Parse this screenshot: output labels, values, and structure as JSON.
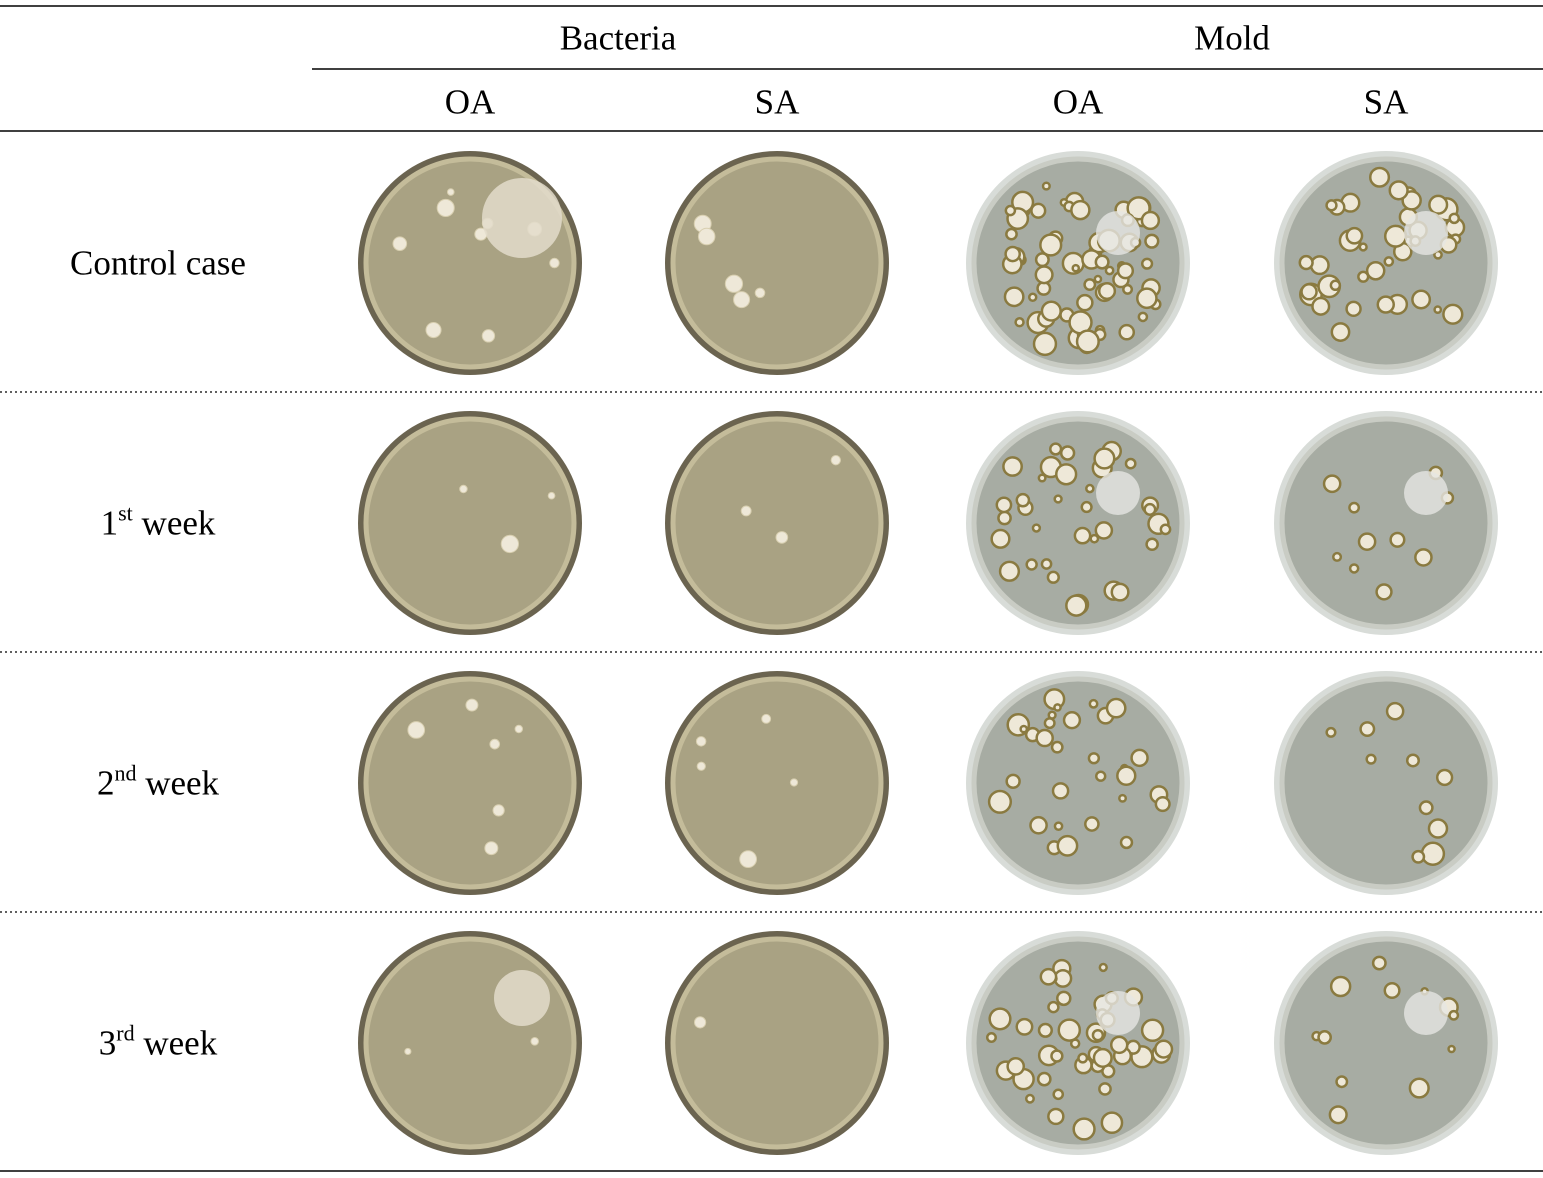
{
  "table": {
    "group_headers": [
      "Bacteria",
      "Mold"
    ],
    "column_headers": [
      "OA",
      "SA",
      "OA",
      "SA"
    ],
    "rows": [
      {
        "label": "Control case"
      },
      {
        "number": "1",
        "suffix": "st",
        "text": "week"
      },
      {
        "number": "2",
        "suffix": "nd",
        "text": "week"
      },
      {
        "number": "3",
        "suffix": "rd",
        "text": "week"
      }
    ]
  }
}
